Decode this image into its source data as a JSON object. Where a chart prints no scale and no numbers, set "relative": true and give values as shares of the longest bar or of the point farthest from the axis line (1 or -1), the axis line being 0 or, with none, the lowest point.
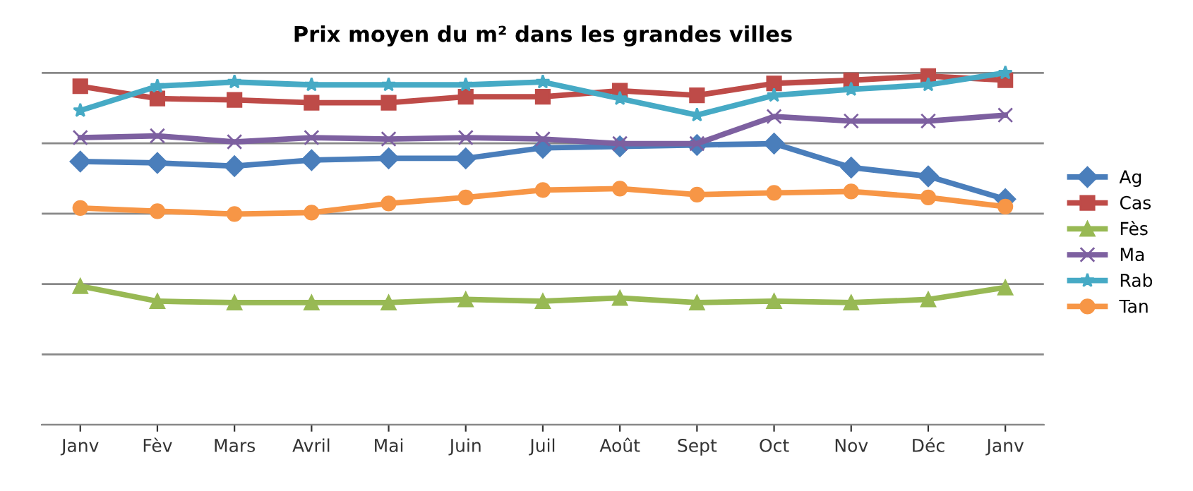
{
  "chart_data": {
    "type": "line",
    "title": "Prix moyen du m² dans les grandes villes",
    "categories": [
      "Janv",
      "Fèv",
      "Mars",
      "Avril",
      "Mai",
      "Juin",
      "Juil",
      "Août",
      "Sept",
      "Oct",
      "Nov",
      "Déc",
      "Janv"
    ],
    "relative": true,
    "grid": "y",
    "legend": "right",
    "line_style": "solid",
    "series": [
      {
        "name": "Ag",
        "color": "#4a7ebb",
        "marker": "diamond",
        "values": [
          0.748,
          0.744,
          0.735,
          0.752,
          0.757,
          0.757,
          0.787,
          0.791,
          0.795,
          0.799,
          0.731,
          0.706,
          0.641
        ]
      },
      {
        "name": "Cas",
        "color": "#be4b48",
        "marker": "square",
        "values": [
          0.962,
          0.927,
          0.923,
          0.915,
          0.915,
          0.932,
          0.932,
          0.949,
          0.936,
          0.97,
          0.979,
          0.991,
          0.979
        ]
      },
      {
        "name": "Fès",
        "color": "#98b954",
        "marker": "triangle",
        "values": [
          0.394,
          0.351,
          0.347,
          0.347,
          0.347,
          0.356,
          0.351,
          0.36,
          0.347,
          0.351,
          0.347,
          0.356,
          0.39
        ]
      },
      {
        "name": "Ma",
        "color": "#7d60a0",
        "marker": "cross",
        "values": [
          0.816,
          0.821,
          0.804,
          0.816,
          0.812,
          0.816,
          0.812,
          0.799,
          0.799,
          0.876,
          0.863,
          0.863,
          0.88
        ]
      },
      {
        "name": "Rab",
        "color": "#46aac5",
        "marker": "star",
        "values": [
          0.893,
          0.962,
          0.974,
          0.966,
          0.966,
          0.966,
          0.974,
          0.927,
          0.88,
          0.936,
          0.953,
          0.966,
          1.0
        ]
      },
      {
        "name": "Tan",
        "color": "#f79646",
        "marker": "circle",
        "values": [
          0.616,
          0.607,
          0.599,
          0.603,
          0.629,
          0.646,
          0.667,
          0.671,
          0.654,
          0.659,
          0.663,
          0.646,
          0.62
        ]
      }
    ]
  }
}
